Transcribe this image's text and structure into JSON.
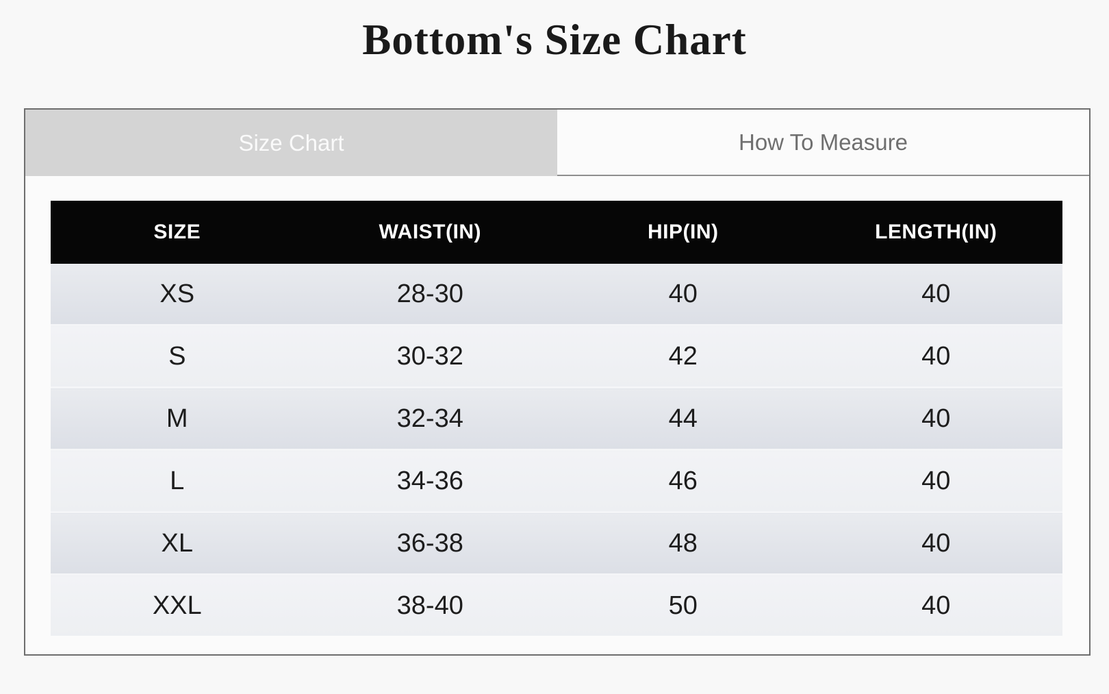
{
  "title": "Bottom's Size Chart",
  "tabs": [
    {
      "label": "Size Chart",
      "active": true
    },
    {
      "label": "How To Measure",
      "active": false
    }
  ],
  "table": {
    "headers": [
      "SIZE",
      "WAIST(IN)",
      "HIP(IN)",
      "LENGTH(IN)"
    ],
    "rows": [
      [
        "XS",
        "28-30",
        "40",
        "40"
      ],
      [
        "S",
        "30-32",
        "42",
        "40"
      ],
      [
        "M",
        "32-34",
        "44",
        "40"
      ],
      [
        "L",
        "34-36",
        "46",
        "40"
      ],
      [
        "XL",
        "36-38",
        "48",
        "40"
      ],
      [
        "XXL",
        "38-40",
        "50",
        "40"
      ]
    ]
  },
  "colors": {
    "page_background": "#f8f8f8",
    "card_background": "#fbfbfb",
    "card_border": "#6e6e6e",
    "active_tab_background": "#d4d4d4",
    "active_tab_text": "#fafafa",
    "inactive_tab_text": "#6f6f6f",
    "header_row_background": "#060606",
    "header_row_text": "#ffffff",
    "row_odd_background": "#dfe2e8",
    "row_even_background": "#eff1f4",
    "cell_text": "#1d1d1d",
    "title_text": "#1a1a1a"
  }
}
